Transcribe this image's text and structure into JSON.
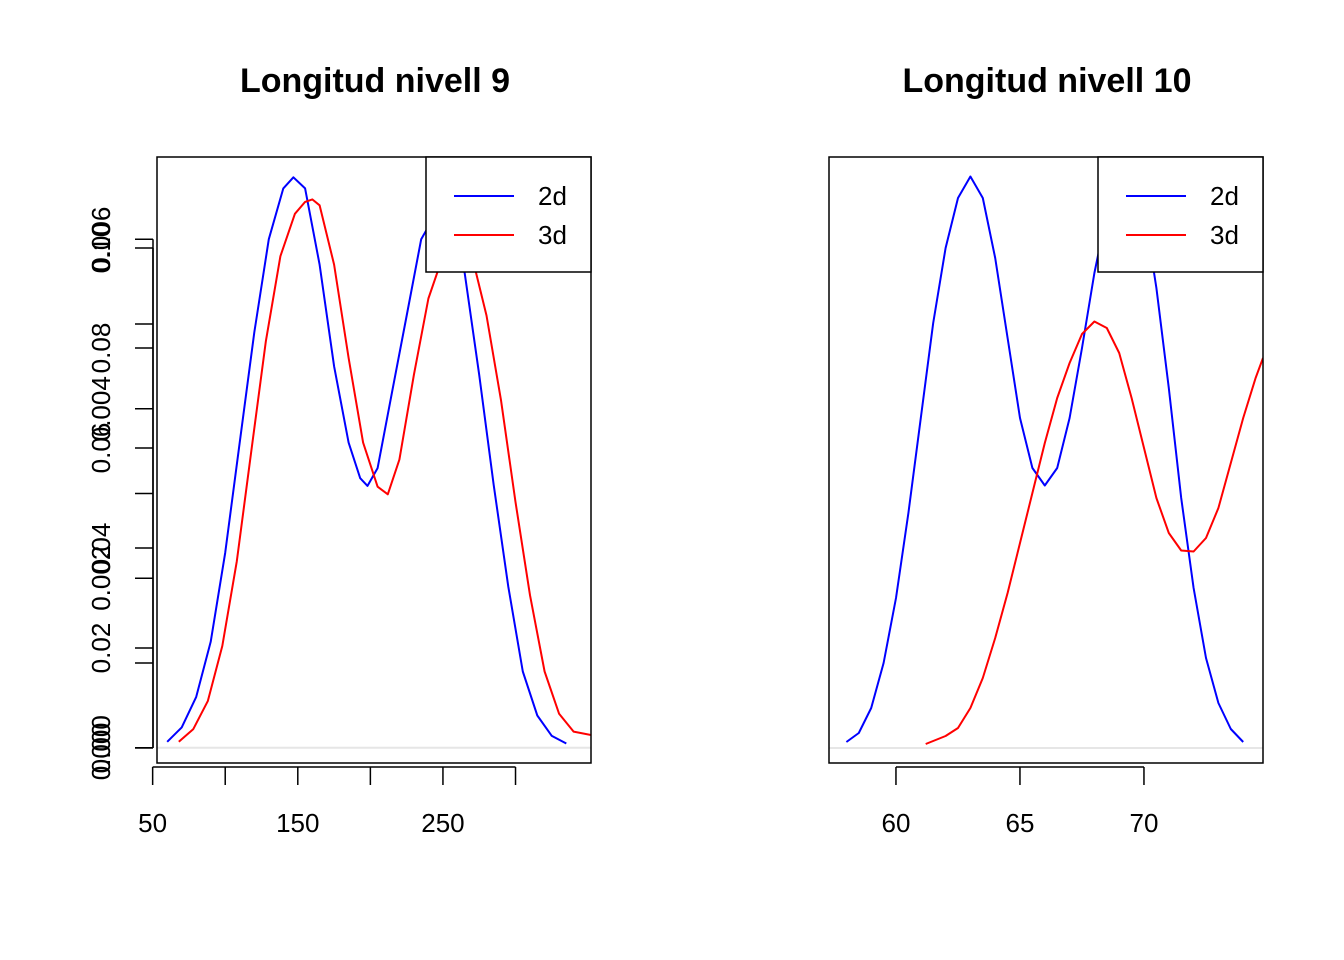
{
  "chart_data": [
    {
      "type": "line",
      "title": "Longitud nivell 9",
      "xlabel": "",
      "ylabel": "",
      "xlim": [
        53,
        352
      ],
      "ylim": [
        -0.00018,
        0.00697
      ],
      "xticks": [
        50,
        100,
        150,
        200,
        250,
        300
      ],
      "xtick_labels": [
        "50",
        "",
        "150",
        "",
        "250",
        ""
      ],
      "yticks": [
        0.0,
        0.001,
        0.002,
        0.003,
        0.004,
        0.005,
        0.006
      ],
      "ytick_labels": [
        "0.000",
        "",
        "0.002",
        "",
        "0.004",
        "",
        "0.006"
      ],
      "zero_line": true,
      "legend": {
        "position": "top-right",
        "entries": [
          {
            "label": "2d",
            "color": "#0000ff"
          },
          {
            "label": "3d",
            "color": "#ff0000"
          }
        ]
      },
      "series": [
        {
          "name": "2d",
          "color": "#0000ff",
          "points": [
            [
              60,
              7e-05
            ],
            [
              70,
              0.00024
            ],
            [
              80,
              0.0006
            ],
            [
              90,
              0.00125
            ],
            [
              100,
              0.0023
            ],
            [
              110,
              0.0036
            ],
            [
              120,
              0.0049
            ],
            [
              130,
              0.006
            ],
            [
              140,
              0.0066
            ],
            [
              147,
              0.00673
            ],
            [
              155,
              0.0066
            ],
            [
              165,
              0.0057
            ],
            [
              175,
              0.0045
            ],
            [
              185,
              0.0036
            ],
            [
              193,
              0.00318
            ],
            [
              198,
              0.00309
            ],
            [
              205,
              0.0033
            ],
            [
              215,
              0.0042
            ],
            [
              225,
              0.0051
            ],
            [
              235,
              0.006
            ],
            [
              245,
              0.0063
            ],
            [
              255,
              0.0062
            ],
            [
              265,
              0.0056
            ],
            [
              275,
              0.0044
            ],
            [
              285,
              0.0031
            ],
            [
              295,
              0.0019
            ],
            [
              305,
              0.0009
            ],
            [
              315,
              0.00038
            ],
            [
              325,
              0.00014
            ],
            [
              335,
              5e-05
            ]
          ]
        },
        {
          "name": "3d",
          "color": "#ff0000",
          "points": [
            [
              68,
              7e-05
            ],
            [
              78,
              0.00022
            ],
            [
              88,
              0.00055
            ],
            [
              98,
              0.0012
            ],
            [
              108,
              0.0022
            ],
            [
              118,
              0.0035
            ],
            [
              128,
              0.0048
            ],
            [
              138,
              0.0058
            ],
            [
              148,
              0.0063
            ],
            [
              155,
              0.00644
            ],
            [
              160,
              0.00647
            ],
            [
              165,
              0.0064
            ],
            [
              175,
              0.0057
            ],
            [
              185,
              0.0046
            ],
            [
              195,
              0.0036
            ],
            [
              205,
              0.00308
            ],
            [
              212,
              0.00299
            ],
            [
              220,
              0.0034
            ],
            [
              230,
              0.0044
            ],
            [
              240,
              0.0053
            ],
            [
              250,
              0.0058
            ],
            [
              260,
              0.006
            ],
            [
              270,
              0.0058
            ],
            [
              280,
              0.0051
            ],
            [
              290,
              0.0041
            ],
            [
              300,
              0.0029
            ],
            [
              310,
              0.0018
            ],
            [
              320,
              0.0009
            ],
            [
              330,
              0.0004
            ],
            [
              340,
              0.00019
            ],
            [
              352,
              0.00015
            ]
          ]
        }
      ]
    },
    {
      "type": "line",
      "title": "Longitud nivell 10",
      "xlabel": "",
      "ylabel": "",
      "xlim": [
        57.3,
        74.8
      ],
      "ylim": [
        -0.003,
        0.1182
      ],
      "xticks": [
        60,
        65,
        70
      ],
      "xtick_labels": [
        "60",
        "65",
        "70"
      ],
      "yticks": [
        0.0,
        0.02,
        0.04,
        0.06,
        0.08,
        0.1
      ],
      "ytick_labels": [
        "0.00",
        "0.02",
        "0.04",
        "0.06",
        "0.08",
        "0.10"
      ],
      "zero_line": true,
      "legend": {
        "position": "top-right",
        "entries": [
          {
            "label": "2d",
            "color": "#0000ff"
          },
          {
            "label": "3d",
            "color": "#ff0000"
          }
        ]
      },
      "series": [
        {
          "name": "2d",
          "color": "#0000ff",
          "points": [
            [
              58,
              0.0012
            ],
            [
              58.5,
              0.003
            ],
            [
              59,
              0.008
            ],
            [
              59.5,
              0.017
            ],
            [
              60,
              0.03
            ],
            [
              60.5,
              0.047
            ],
            [
              61,
              0.066
            ],
            [
              61.5,
              0.085
            ],
            [
              62,
              0.1
            ],
            [
              62.5,
              0.11
            ],
            [
              63,
              0.1143
            ],
            [
              63.5,
              0.11
            ],
            [
              64,
              0.098
            ],
            [
              64.5,
              0.082
            ],
            [
              65,
              0.066
            ],
            [
              65.5,
              0.056
            ],
            [
              66,
              0.0525
            ],
            [
              66.5,
              0.056
            ],
            [
              67,
              0.066
            ],
            [
              67.5,
              0.08
            ],
            [
              68,
              0.095
            ],
            [
              68.5,
              0.107
            ],
            [
              69,
              0.114
            ],
            [
              69.5,
              0.115
            ],
            [
              70,
              0.108
            ],
            [
              70.5,
              0.092
            ],
            [
              71,
              0.072
            ],
            [
              71.5,
              0.05
            ],
            [
              72,
              0.032
            ],
            [
              72.5,
              0.018
            ],
            [
              73,
              0.009
            ],
            [
              73.5,
              0.0038
            ],
            [
              74,
              0.0012
            ]
          ]
        },
        {
          "name": "3d",
          "color": "#ff0000",
          "points": [
            [
              61.2,
              0.0008
            ],
            [
              62,
              0.0024
            ],
            [
              62.5,
              0.004
            ],
            [
              63,
              0.008
            ],
            [
              63.5,
              0.014
            ],
            [
              64,
              0.022
            ],
            [
              64.5,
              0.031
            ],
            [
              65,
              0.041
            ],
            [
              65.5,
              0.051
            ],
            [
              66,
              0.061
            ],
            [
              66.5,
              0.07
            ],
            [
              67,
              0.077
            ],
            [
              67.5,
              0.0828
            ],
            [
              68,
              0.0853
            ],
            [
              68.5,
              0.084
            ],
            [
              69,
              0.079
            ],
            [
              69.5,
              0.07
            ],
            [
              70,
              0.06
            ],
            [
              70.5,
              0.05
            ],
            [
              71,
              0.043
            ],
            [
              71.5,
              0.0395
            ],
            [
              72,
              0.0393
            ],
            [
              72.5,
              0.042
            ],
            [
              73,
              0.048
            ],
            [
              73.5,
              0.057
            ],
            [
              74,
              0.066
            ],
            [
              74.5,
              0.074
            ],
            [
              74.8,
              0.078
            ]
          ]
        }
      ]
    }
  ]
}
